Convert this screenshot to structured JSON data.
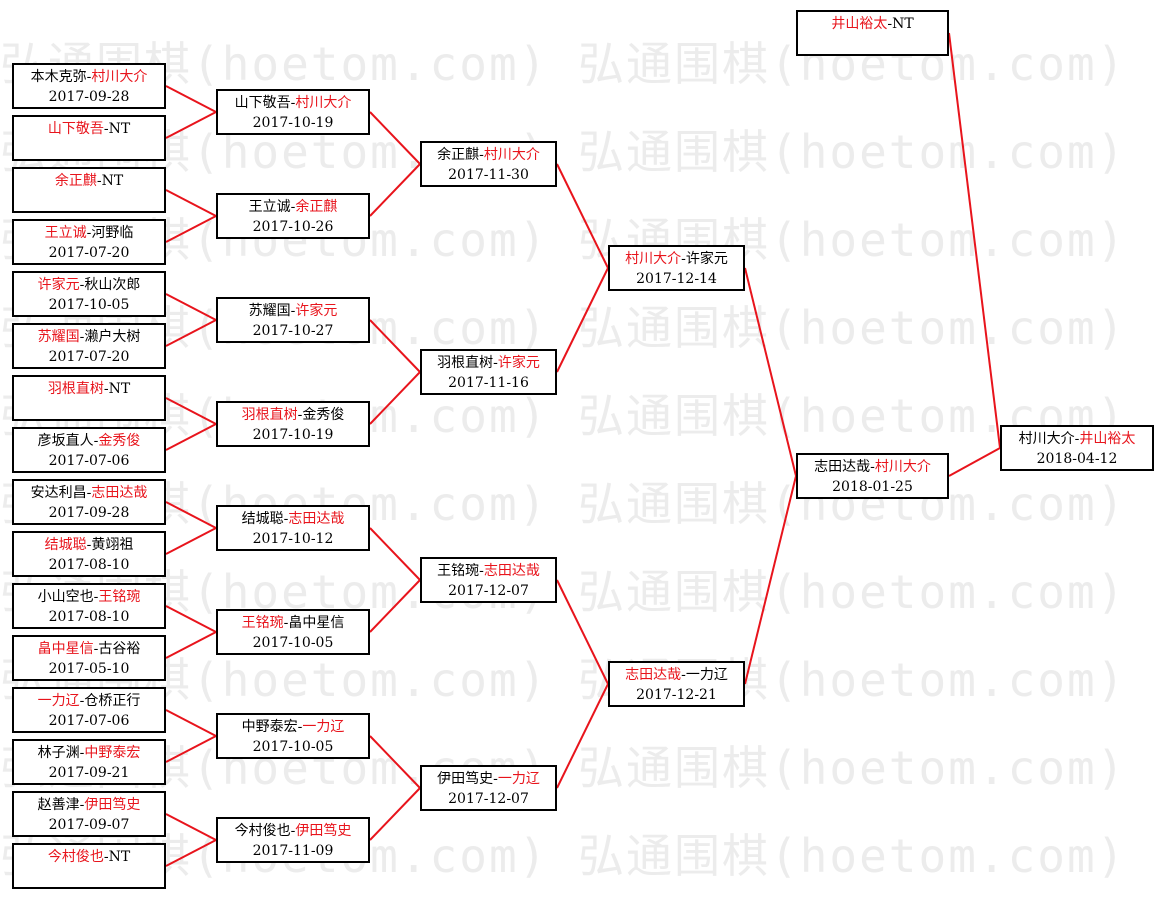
{
  "watermark": "弘通围棋(hoetom.com) 弘通围棋(hoetom.com)",
  "colors": {
    "winner": "#e8141c",
    "line": "#e8141c",
    "border": "#000000"
  },
  "rounds": [
    [
      {
        "p1": "本木克弥",
        "p2": "村川大介",
        "win": 2,
        "date": "2017-09-28"
      },
      {
        "p1": "山下敬吾",
        "p2": "NT",
        "win": 1,
        "date": ""
      },
      {
        "p1": "余正麒",
        "p2": "NT",
        "win": 1,
        "date": ""
      },
      {
        "p1": "王立诚",
        "p2": "河野临",
        "win": 1,
        "date": "2017-07-20"
      },
      {
        "p1": "许家元",
        "p2": "秋山次郎",
        "win": 1,
        "date": "2017-10-05"
      },
      {
        "p1": "苏耀国",
        "p2": "濑户大树",
        "win": 1,
        "date": "2017-07-20"
      },
      {
        "p1": "羽根直树",
        "p2": "NT",
        "win": 1,
        "date": ""
      },
      {
        "p1": "彦坂直人",
        "p2": "金秀俊",
        "win": 2,
        "date": "2017-07-06"
      },
      {
        "p1": "安达利昌",
        "p2": "志田达哉",
        "win": 2,
        "date": "2017-09-28"
      },
      {
        "p1": "结城聪",
        "p2": "黄翊祖",
        "win": 1,
        "date": "2017-08-10"
      },
      {
        "p1": "小山空也",
        "p2": "王铭琬",
        "win": 2,
        "date": "2017-08-10"
      },
      {
        "p1": "畠中星信",
        "p2": "古谷裕",
        "win": 1,
        "date": "2017-05-10"
      },
      {
        "p1": "一力辽",
        "p2": "仓桥正行",
        "win": 1,
        "date": "2017-07-06"
      },
      {
        "p1": "林子渊",
        "p2": "中野泰宏",
        "win": 2,
        "date": "2017-09-21"
      },
      {
        "p1": "赵善津",
        "p2": "伊田笃史",
        "win": 2,
        "date": "2017-09-07"
      },
      {
        "p1": "今村俊也",
        "p2": "NT",
        "win": 1,
        "date": ""
      }
    ],
    [
      {
        "p1": "山下敬吾",
        "p2": "村川大介",
        "win": 2,
        "date": "2017-10-19"
      },
      {
        "p1": "王立诚",
        "p2": "余正麒",
        "win": 2,
        "date": "2017-10-26"
      },
      {
        "p1": "苏耀国",
        "p2": "许家元",
        "win": 2,
        "date": "2017-10-27"
      },
      {
        "p1": "羽根直树",
        "p2": "金秀俊",
        "win": 1,
        "date": "2017-10-19"
      },
      {
        "p1": "结城聪",
        "p2": "志田达哉",
        "win": 2,
        "date": "2017-10-12"
      },
      {
        "p1": "王铭琬",
        "p2": "畠中星信",
        "win": 1,
        "date": "2017-10-05"
      },
      {
        "p1": "中野泰宏",
        "p2": "一力辽",
        "win": 2,
        "date": "2017-10-05"
      },
      {
        "p1": "今村俊也",
        "p2": "伊田笃史",
        "win": 2,
        "date": "2017-11-09"
      }
    ],
    [
      {
        "p1": "余正麒",
        "p2": "村川大介",
        "win": 2,
        "date": "2017-11-30"
      },
      {
        "p1": "羽根直树",
        "p2": "许家元",
        "win": 2,
        "date": "2017-11-16"
      },
      {
        "p1": "王铭琬",
        "p2": "志田达哉",
        "win": 2,
        "date": "2017-12-07"
      },
      {
        "p1": "伊田笃史",
        "p2": "一力辽",
        "win": 2,
        "date": "2017-12-07"
      }
    ],
    [
      {
        "p1": "村川大介",
        "p2": "许家元",
        "win": 1,
        "date": "2017-12-14"
      },
      {
        "p1": "志田达哉",
        "p2": "一力辽",
        "win": 1,
        "date": "2017-12-21"
      }
    ],
    [
      {
        "p1": "志田达哉",
        "p2": "村川大介",
        "win": 2,
        "date": "2018-01-25"
      }
    ]
  ],
  "seed": {
    "p1": "井山裕太",
    "p2": "NT",
    "win": 1,
    "date": ""
  },
  "final": {
    "p1": "村川大介",
    "p2": "井山裕太",
    "win": 2,
    "date": "2018-04-12"
  }
}
